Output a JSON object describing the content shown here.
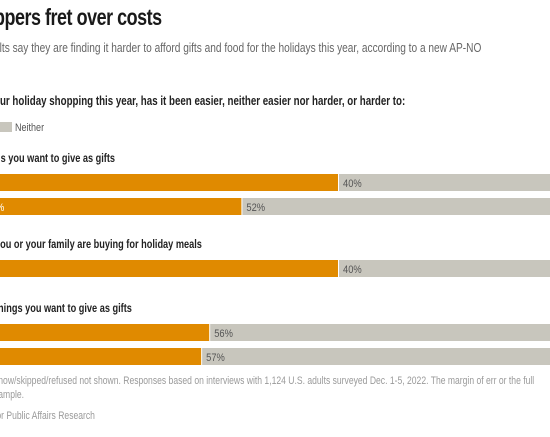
{
  "header": {
    "title": "ppers fret over costs",
    "subtitle": "ults say they are finding it harder to afford gifts and food for the holidays this year, according to a new AP-NO",
    "question": "our holiday shopping this year, has it been easier, neither easier nor harder, or harder to:"
  },
  "legend": {
    "neither_label": "Neither"
  },
  "colors": {
    "harder": "#e08a00",
    "neither": "#c8c6bd"
  },
  "chart_data": {
    "type": "bar",
    "stacked": true,
    "orientation": "horizontal",
    "series": [
      {
        "name": "Neither"
      }
    ],
    "groups": [
      {
        "label": "gs you want to give as gifts",
        "rows": [
          {
            "left_label": "",
            "neither_label": "40%",
            "neither": 40
          },
          {
            "left_label": "%",
            "neither_label": "52%",
            "neither": 52
          }
        ]
      },
      {
        "label": "you or your family are buying for holiday meals",
        "rows": [
          {
            "left_label": "",
            "neither_label": "40%",
            "neither": 40
          }
        ]
      },
      {
        "label": "things you want to give as gifts",
        "rows": [
          {
            "left_label": "",
            "neither_label": "56%",
            "neither": 56
          },
          {
            "left_label": "",
            "neither_label": "57%",
            "neither": 57
          }
        ]
      }
    ]
  },
  "notes": {
    "footnote": "know/skipped/refused not shown. Responses based on interviews with 1,124 U.S. adults surveyed Dec. 1-5, 2022. The margin of err or the full sample.",
    "source": "for Public Affairs Research"
  }
}
